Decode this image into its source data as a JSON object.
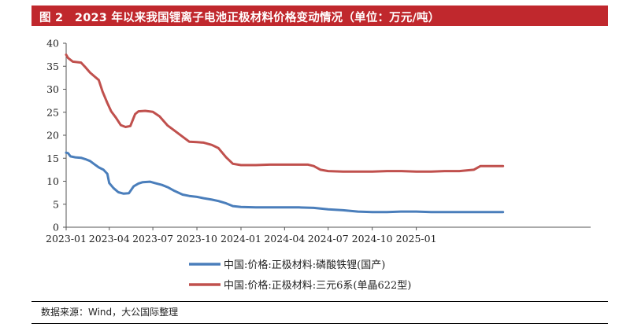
{
  "header": {
    "title": "图 2　2023 年以来我国锂离子电池正极材料价格变动情况（单位：万元/吨）"
  },
  "footer": {
    "source": "数据来源：Wind，大公国际整理"
  },
  "colors": {
    "title_background": "#c0282d",
    "lfp_series": "#4a7ebb",
    "ncm_series": "#c0504d"
  },
  "chart_data": {
    "type": "line",
    "title": "2023 年以来我国锂离子电池正极材料价格变动情况（单位：万元/吨）",
    "xlabel": "",
    "ylabel": "",
    "x_domain": [
      "2023-01-01",
      "2025-12-31"
    ],
    "xticks": [
      "2023-01",
      "2023-04",
      "2023-07",
      "2023-10",
      "2024-01",
      "2024-04",
      "2024-07",
      "2024-10",
      "2025-01"
    ],
    "yticks": [
      0,
      5,
      10,
      15,
      20,
      25,
      30,
      35,
      40
    ],
    "ylim": [
      0,
      40
    ],
    "grid": false,
    "legend": "bottom-center",
    "series": [
      {
        "name": "中国:价格:正极材料:磷酸铁锂(国产)",
        "points": [
          [
            "2023-01-01",
            16.2
          ],
          [
            "2023-01-05",
            16.1
          ],
          [
            "2023-01-10",
            15.4
          ],
          [
            "2023-01-20",
            15.2
          ],
          [
            "2023-02-01",
            15.1
          ],
          [
            "2023-02-10",
            14.8
          ],
          [
            "2023-02-20",
            14.4
          ],
          [
            "2023-03-01",
            13.7
          ],
          [
            "2023-03-10",
            13.0
          ],
          [
            "2023-03-20",
            12.5
          ],
          [
            "2023-03-28",
            11.6
          ],
          [
            "2023-04-01",
            9.6
          ],
          [
            "2023-04-10",
            8.5
          ],
          [
            "2023-04-20",
            7.6
          ],
          [
            "2023-05-01",
            7.3
          ],
          [
            "2023-05-12",
            7.4
          ],
          [
            "2023-05-22",
            8.9
          ],
          [
            "2023-06-01",
            9.5
          ],
          [
            "2023-06-10",
            9.8
          ],
          [
            "2023-06-25",
            9.9
          ],
          [
            "2023-07-05",
            9.6
          ],
          [
            "2023-07-20",
            9.2
          ],
          [
            "2023-08-01",
            8.7
          ],
          [
            "2023-08-15",
            7.9
          ],
          [
            "2023-09-01",
            7.1
          ],
          [
            "2023-09-15",
            6.8
          ],
          [
            "2023-10-01",
            6.6
          ],
          [
            "2023-10-15",
            6.3
          ],
          [
            "2023-11-01",
            6.0
          ],
          [
            "2023-11-15",
            5.7
          ],
          [
            "2023-12-01",
            5.2
          ],
          [
            "2023-12-15",
            4.6
          ],
          [
            "2024-01-01",
            4.4
          ],
          [
            "2024-02-01",
            4.3
          ],
          [
            "2024-03-01",
            4.3
          ],
          [
            "2024-04-01",
            4.3
          ],
          [
            "2024-05-01",
            4.3
          ],
          [
            "2024-06-01",
            4.2
          ],
          [
            "2024-07-01",
            3.9
          ],
          [
            "2024-08-01",
            3.7
          ],
          [
            "2024-09-01",
            3.4
          ],
          [
            "2024-10-01",
            3.3
          ],
          [
            "2024-11-01",
            3.3
          ],
          [
            "2024-12-01",
            3.4
          ],
          [
            "2025-01-01",
            3.4
          ],
          [
            "2025-02-01",
            3.3
          ],
          [
            "2025-03-01",
            3.3
          ],
          [
            "2025-04-01",
            3.3
          ],
          [
            "2025-05-01",
            3.3
          ],
          [
            "2025-06-01",
            3.3
          ],
          [
            "2025-07-01",
            3.3
          ]
        ]
      },
      {
        "name": "中国:价格:正极材料:三元6系(单晶622型)",
        "points": [
          [
            "2023-01-01",
            37.5
          ],
          [
            "2023-01-05",
            36.8
          ],
          [
            "2023-01-15",
            36.0
          ],
          [
            "2023-02-01",
            35.8
          ],
          [
            "2023-02-10",
            34.8
          ],
          [
            "2023-02-20",
            33.6
          ],
          [
            "2023-03-01",
            32.8
          ],
          [
            "2023-03-10",
            32.0
          ],
          [
            "2023-03-18",
            29.5
          ],
          [
            "2023-03-28",
            27.0
          ],
          [
            "2023-04-05",
            25.2
          ],
          [
            "2023-04-15",
            23.8
          ],
          [
            "2023-04-25",
            22.2
          ],
          [
            "2023-05-05",
            21.8
          ],
          [
            "2023-05-15",
            22.0
          ],
          [
            "2023-05-25",
            24.6
          ],
          [
            "2023-06-01",
            25.2
          ],
          [
            "2023-06-15",
            25.3
          ],
          [
            "2023-07-01",
            25.1
          ],
          [
            "2023-07-15",
            24.1
          ],
          [
            "2023-08-01",
            22.1
          ],
          [
            "2023-08-15",
            21.0
          ],
          [
            "2023-09-01",
            19.7
          ],
          [
            "2023-09-15",
            18.6
          ],
          [
            "2023-10-01",
            18.5
          ],
          [
            "2023-10-15",
            18.4
          ],
          [
            "2023-11-01",
            17.9
          ],
          [
            "2023-11-15",
            17.2
          ],
          [
            "2023-12-01",
            15.2
          ],
          [
            "2023-12-15",
            13.8
          ],
          [
            "2024-01-01",
            13.5
          ],
          [
            "2024-02-01",
            13.5
          ],
          [
            "2024-03-01",
            13.6
          ],
          [
            "2024-04-01",
            13.6
          ],
          [
            "2024-05-01",
            13.6
          ],
          [
            "2024-05-20",
            13.6
          ],
          [
            "2024-06-01",
            13.3
          ],
          [
            "2024-06-15",
            12.5
          ],
          [
            "2024-07-01",
            12.2
          ],
          [
            "2024-08-01",
            12.1
          ],
          [
            "2024-09-01",
            12.1
          ],
          [
            "2024-10-01",
            12.1
          ],
          [
            "2024-11-01",
            12.2
          ],
          [
            "2024-12-01",
            12.2
          ],
          [
            "2025-01-01",
            12.1
          ],
          [
            "2025-02-01",
            12.1
          ],
          [
            "2025-03-01",
            12.2
          ],
          [
            "2025-04-01",
            12.2
          ],
          [
            "2025-05-01",
            12.5
          ],
          [
            "2025-05-15",
            13.3
          ],
          [
            "2025-07-01",
            13.3
          ]
        ]
      }
    ]
  }
}
